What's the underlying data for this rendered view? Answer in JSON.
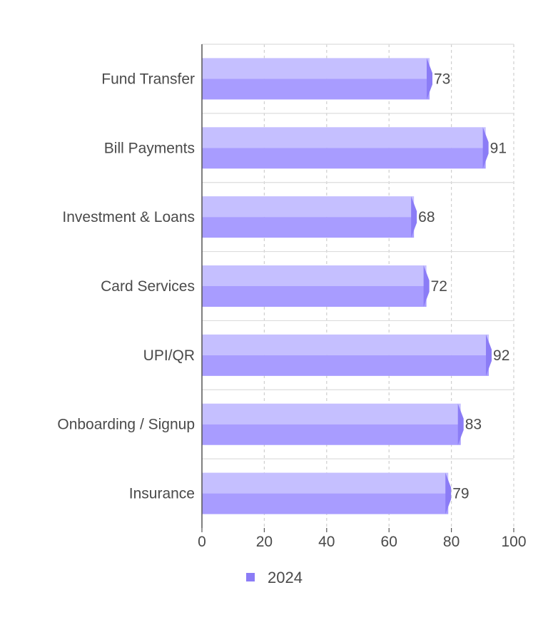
{
  "chart_data": {
    "type": "bar",
    "orientation": "horizontal",
    "categories": [
      "Fund Transfer",
      "Bill Payments",
      "Investment & Loans",
      "Card Services",
      "UPI/QR",
      "Onboarding / Signup",
      "Insurance"
    ],
    "series": [
      {
        "name": "2024",
        "values": [
          73,
          91,
          68,
          72,
          92,
          83,
          79
        ]
      }
    ],
    "title": "",
    "xlabel": "",
    "ylabel": "",
    "xlim": [
      0,
      100
    ],
    "x_ticks": [
      "0",
      "20",
      "40",
      "60",
      "80",
      "100"
    ],
    "grid": true,
    "legend_position": "bottom",
    "colors": {
      "bar_top": "#c5bfff",
      "bar_bottom": "#a89cff",
      "bar_tip": "#8b7cf6",
      "legend_marker": "#8b7cf6",
      "grid": "#cfcfcf",
      "axis": "#555555",
      "text": "#4a4a4a"
    }
  }
}
